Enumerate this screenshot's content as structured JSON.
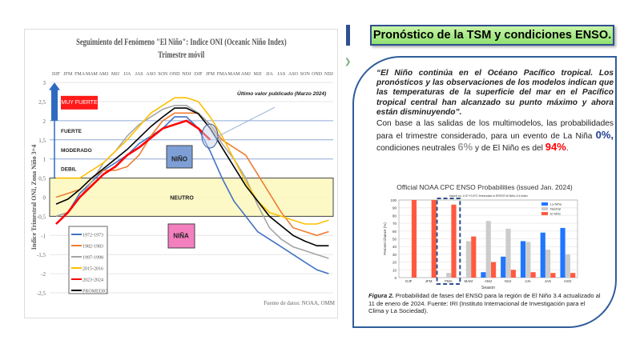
{
  "left_chart": {
    "title": "Seguimiento del Fenómeno \"El Niño\": Indice ONI (Oceanic Niño Index)",
    "subtitle": "Trimestre móvil",
    "ylabel": "Indice Trimestral ONI, Zona Niño 3+4",
    "source": "Fuente de datos: NOAA, OMM",
    "annotation": "Último valor publicado  (Marzo 2024)",
    "categories_labels": [
      "MUY FUERTE",
      "FUERTE",
      "MODERADO",
      "DEBIL",
      "NIÑO",
      "NEUTRO",
      "NIÑA"
    ]
  },
  "chart_data": [
    {
      "type": "line",
      "title": "Seguimiento del Fenómeno \"El Niño\": Indice ONI (Oceanic Niño Index) — Trimestre móvil",
      "ylabel": "Indice Trimestral ONI, Zona Niño 3+4",
      "ylim": [
        -2.5,
        3
      ],
      "yticks": [
        "3",
        "2,5",
        "2",
        "1,5",
        "1",
        "0,5",
        "0",
        "-0,5",
        "-1",
        "-1,5",
        "-2",
        "-2,5"
      ],
      "x": [
        "DJF",
        "JFM",
        "FMA",
        "MAM",
        "AMJ",
        "MJJ",
        "JJA",
        "JAS",
        "ASO",
        "SON",
        "OND",
        "NDJ",
        "DJF",
        "JFM",
        "FMA",
        "MAM",
        "AMJ",
        "MJJ",
        "JJA",
        "JAS",
        "ASO",
        "SON",
        "OND",
        "NDJ"
      ],
      "legend": "bottom-left",
      "series": [
        {
          "name": "1972-1973",
          "color": "#4472c4",
          "values": [
            -0.5,
            -0.4,
            0.1,
            0.4,
            0.7,
            0.9,
            1.1,
            1.4,
            1.6,
            1.8,
            2.1,
            2.1,
            1.8,
            1.2,
            0.5,
            -0.1,
            -0.5,
            -0.9,
            -1.1,
            -1.3,
            -1.5,
            -1.7,
            -1.9,
            -2.0
          ]
        },
        {
          "name": "1982-1983",
          "color": "#ed7d31",
          "values": [
            0.0,
            0.1,
            0.2,
            0.5,
            0.7,
            0.7,
            0.8,
            1.1,
            1.6,
            2.0,
            2.2,
            2.2,
            2.2,
            1.9,
            1.5,
            1.3,
            1.1,
            0.6,
            0.1,
            -0.4,
            -0.8,
            -0.9,
            -1.0,
            -0.9
          ]
        },
        {
          "name": "1997-1998",
          "color": "#a5a5a5",
          "values": [
            -0.5,
            -0.4,
            0.0,
            0.4,
            0.9,
            1.2,
            1.6,
            1.9,
            2.1,
            2.3,
            2.4,
            2.4,
            2.2,
            1.9,
            1.4,
            1.0,
            0.5,
            -0.2,
            -0.8,
            -1.1,
            -1.3,
            -1.4,
            -1.5,
            -1.6
          ]
        },
        {
          "name": "2015-2016",
          "color": "#ffc000",
          "values": [
            0.5,
            0.5,
            0.5,
            0.7,
            0.9,
            1.2,
            1.5,
            1.85,
            2.2,
            2.4,
            2.6,
            2.6,
            2.5,
            2.1,
            1.6,
            1.0,
            0.4,
            -0.1,
            -0.4,
            -0.5,
            -0.6,
            -0.7,
            -0.7,
            -0.6
          ]
        },
        {
          "name": "2023-2024",
          "color": "#ff0000",
          "values": [
            -0.7,
            -0.4,
            0.0,
            0.3,
            0.6,
            0.8,
            1.1,
            1.3,
            1.55,
            1.8,
            1.9,
            2.0,
            1.8,
            1.5,
            null,
            null,
            null,
            null,
            null,
            null,
            null,
            null,
            null,
            null
          ]
        },
        {
          "name": "PROMEDIO",
          "color": "#000000",
          "values": [
            -0.18,
            -0.05,
            0.2,
            0.5,
            0.75,
            1.0,
            1.25,
            1.55,
            1.85,
            2.1,
            2.33,
            2.33,
            2.18,
            1.8,
            1.3,
            0.8,
            0.3,
            -0.1,
            -0.5,
            -0.75,
            -1.0,
            -1.15,
            -1.27,
            -1.27
          ]
        }
      ]
    },
    {
      "type": "bar",
      "title": "Official NOAA CPC ENSO Probabilities (issued Jan. 2024)",
      "subtitle": "based on -0.5°/+0.5°C thresholds in ERSSTv5 Niño-3.4 index",
      "xlabel": "Season",
      "ylabel": "Percent Chance (%)",
      "ylim": [
        0,
        100
      ],
      "yticks": [
        0,
        10,
        20,
        30,
        40,
        50,
        60,
        70,
        80,
        90,
        100
      ],
      "categories": [
        "DJF",
        "JFM",
        "FMA",
        "MAM",
        "AMJ",
        "MJJ",
        "JJA",
        "JAS",
        "ASO"
      ],
      "legend": "top-right",
      "highlight": "FMA",
      "series": [
        {
          "name": "La Niña",
          "color": "#1f77ff",
          "values": [
            0,
            0,
            0,
            0,
            7,
            27,
            47,
            58,
            64
          ]
        },
        {
          "name": "Neutral",
          "color": "#cccccc",
          "values": [
            0,
            0,
            6,
            47,
            73,
            63,
            46,
            36,
            30
          ]
        },
        {
          "name": "El Niño",
          "color": "#ff5a40",
          "values": [
            100,
            100,
            94,
            53,
            20,
            10,
            7,
            6,
            6
          ]
        }
      ]
    }
  ],
  "right": {
    "title": "Pronóstico de la TSM y condiciones ENSO.",
    "quote": "“El Niño continúa en el Océano Pacífico tropical. Los pronósticos y las observaciones de los modelos indican que las temperaturas de la superficie del mar en el Pacífico tropical central han alcanzado su punto máximo y ahora están disminuyendo”.",
    "body_1": "Con base a las salidas de los multimodelos, las probabilidades para el trimestre considerado, para un evento de La Niña ",
    "pct_nina": "0%,",
    "body_2": " condiciones neutrales ",
    "pct_neutral": "6%",
    "body_3": " y de  El Niño es del ",
    "pct_nino": "94%",
    "body_4": ".",
    "colors": {
      "nina": "#1f3f8f",
      "neutral": "#999999",
      "nino": "#ff0000"
    },
    "caption_label": "Figura 2.",
    "caption": " Probabilidad de fases del ENSO para la región de El Niño 3.4 actualizado al 11 de enero de 2024. Fuente: IRI (Instituto Internacional de Investigación para el Clima y La Sociedad)."
  }
}
